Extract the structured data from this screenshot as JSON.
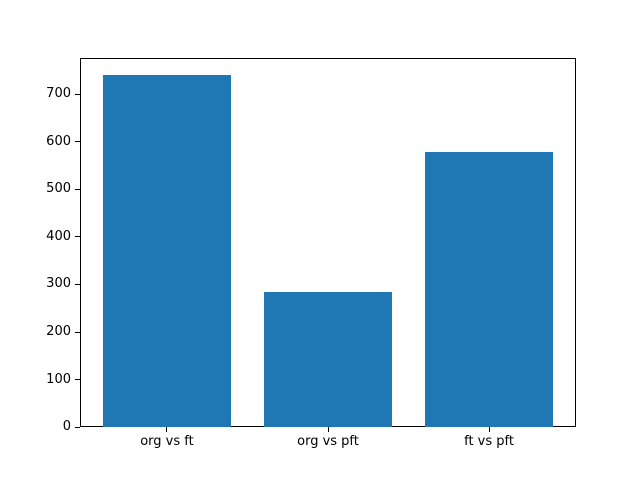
{
  "chart_data": {
    "type": "bar",
    "categories": [
      "org vs ft",
      "org vs pft",
      "ft vs pft"
    ],
    "values": [
      740,
      284,
      579
    ],
    "title": "",
    "xlabel": "",
    "ylabel": "",
    "ylim": [
      0,
      777
    ],
    "xlim": [
      -0.54,
      2.54
    ],
    "yticks": [
      0,
      100,
      200,
      300,
      400,
      500,
      600,
      700
    ],
    "bar_width_fraction": 0.8,
    "bar_color": "#1f77b4",
    "spine_color": "#000000",
    "background_color": "#ffffff",
    "grid": false,
    "legend_position": "none"
  }
}
